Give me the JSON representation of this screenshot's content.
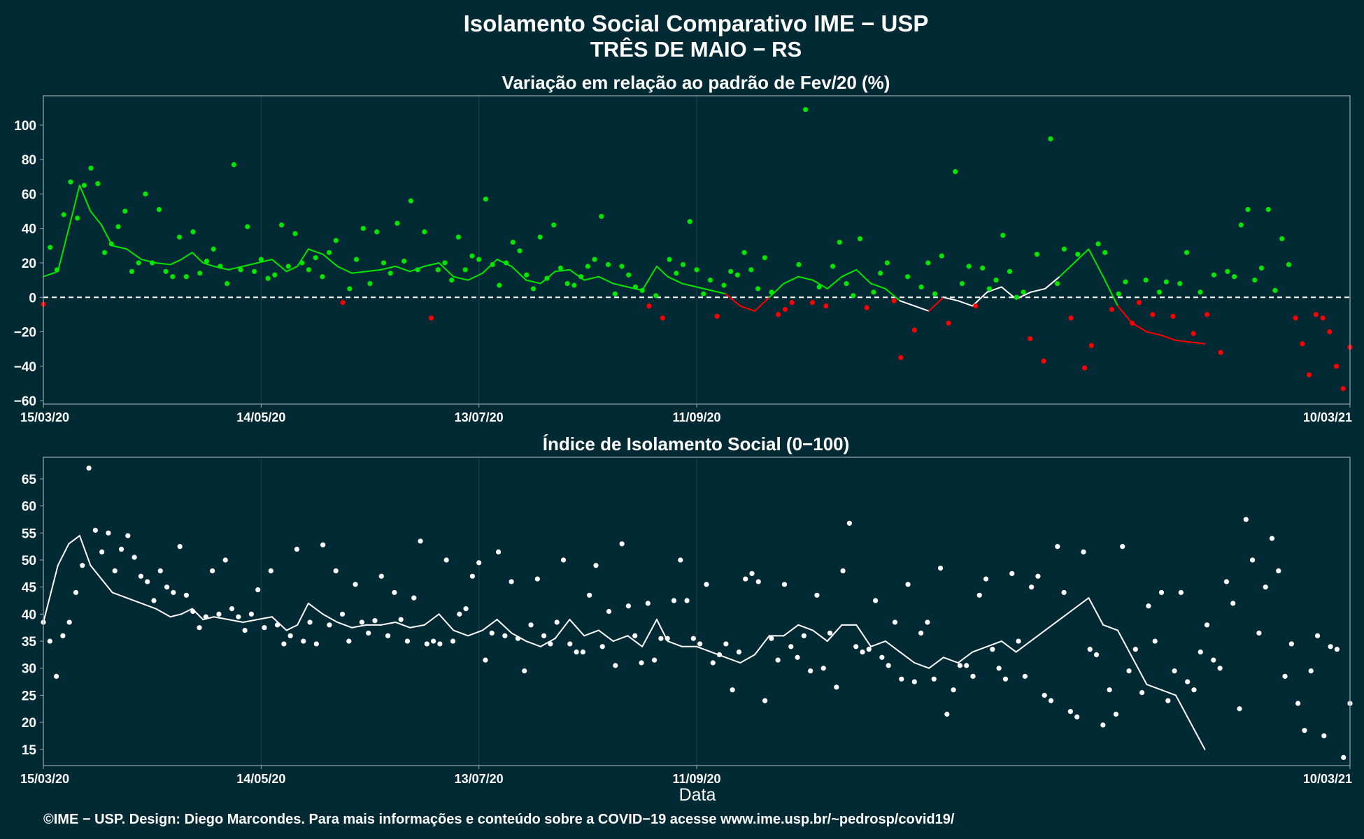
{
  "header": {
    "title": "Isolamento Social Comparativo IME − USP",
    "subtitle": "TRÊS DE MAIO − RS"
  },
  "footer": {
    "credit": "©IME − USP. Design: Diego Marcondes. Para mais informações e conteúdo sobre a COVID−19 acesse www.ime.usp.br/~pedrosp/covid19/"
  },
  "colors": {
    "background": "#022a35",
    "positive": "#00e600",
    "negative": "#ff0000",
    "index": "#ffffff",
    "panel_border": "#9aa8ad",
    "grid": "#1d4350"
  },
  "chart_data": [
    {
      "type": "scatter",
      "title": "Variação em relação ao padrão de Fev/20 (%)",
      "xlabel": "",
      "ylabel": "",
      "x_range": [
        "2020-03-15",
        "2021-03-10"
      ],
      "x_ticks": [
        "15/03/20",
        "14/05/20",
        "13/07/20",
        "11/09/20",
        "10/03/21"
      ],
      "ylim": [
        -62,
        117
      ],
      "y_ticks": [
        -60,
        -40,
        -20,
        0,
        20,
        40,
        60,
        80,
        100
      ],
      "grid": true,
      "reference_line": 0,
      "x": [
        "2020-03-15",
        "2020-03-19",
        "2020-03-22",
        "2020-03-25",
        "2020-03-28",
        "2020-03-31",
        "2020-04-03",
        "2020-04-07",
        "2020-04-11",
        "2020-04-15",
        "2020-04-19",
        "2020-04-22",
        "2020-04-25",
        "2020-04-28",
        "2020-05-01",
        "2020-05-05",
        "2020-05-09",
        "2020-05-13",
        "2020-05-17",
        "2020-05-21",
        "2020-05-24",
        "2020-05-27",
        "2020-05-31",
        "2020-06-04",
        "2020-06-08",
        "2020-06-12",
        "2020-06-16",
        "2020-06-20",
        "2020-06-24",
        "2020-06-28",
        "2020-07-02",
        "2020-07-06",
        "2020-07-10",
        "2020-07-14",
        "2020-07-18",
        "2020-07-22",
        "2020-07-26",
        "2020-07-30",
        "2020-08-03",
        "2020-08-07",
        "2020-08-11",
        "2020-08-15",
        "2020-08-19",
        "2020-08-23",
        "2020-08-27",
        "2020-08-31",
        "2020-09-03",
        "2020-09-07",
        "2020-09-11",
        "2020-09-15",
        "2020-09-19",
        "2020-09-23",
        "2020-09-27",
        "2020-10-01",
        "2020-10-05",
        "2020-10-09",
        "2020-10-13",
        "2020-10-17",
        "2020-10-21",
        "2020-10-25",
        "2020-10-29",
        "2020-11-02",
        "2020-11-06",
        "2020-11-10",
        "2020-11-14",
        "2020-11-18",
        "2020-11-22",
        "2020-11-26",
        "2020-11-30",
        "2020-12-04",
        "2020-12-08",
        "2020-12-12",
        "2020-12-16",
        "2020-12-20",
        "2020-12-24",
        "2020-12-28",
        "2021-01-01",
        "2021-01-05",
        "2021-01-09",
        "2021-01-13",
        "2021-01-17",
        "2021-01-21",
        "2021-01-25",
        "2021-01-29",
        "2021-02-02",
        "2021-02-06",
        "2021-02-10",
        "2021-02-14",
        "2021-02-18",
        "2021-02-22",
        "2021-02-26",
        "2021-03-02",
        "2021-03-06",
        "2021-03-10"
      ],
      "series": [
        {
          "values": [
            12,
            15,
            40,
            65,
            50,
            42,
            30,
            28,
            22,
            20,
            19,
            22,
            26,
            20,
            18,
            16,
            18,
            20,
            22,
            15,
            18,
            28,
            25,
            18,
            14,
            15,
            16,
            18,
            15,
            18,
            20,
            12,
            10,
            14,
            22,
            18,
            10,
            8,
            15,
            16,
            10,
            12,
            8,
            6,
            4,
            18,
            12,
            8,
            6,
            4,
            2,
            -5,
            -8,
            0,
            8,
            12,
            10,
            5,
            12,
            16,
            8,
            5,
            -2,
            -5,
            -8,
            0,
            -2,
            -5,
            3,
            6,
            -1,
            3,
            5,
            12,
            20,
            28,
            12,
            -5,
            -15,
            -20,
            -22,
            -25,
            -26,
            -27
          ]
        }
      ],
      "points": [
        -4,
        29,
        16,
        48,
        67,
        46,
        65,
        75,
        66,
        26,
        31,
        41,
        50,
        15,
        20,
        60,
        20,
        51,
        15,
        12,
        35,
        12,
        38,
        14,
        21,
        28,
        18,
        8,
        77,
        16,
        41,
        15,
        22,
        11,
        13,
        42,
        18,
        37,
        20,
        16,
        23,
        12,
        26,
        33,
        -3,
        5,
        22,
        40,
        8,
        38,
        20,
        14,
        43,
        21,
        56,
        16,
        38,
        -12,
        16,
        20,
        10,
        35,
        16,
        24,
        22,
        57,
        19,
        7,
        20,
        32,
        27,
        13,
        5,
        35,
        11,
        42,
        17,
        8,
        7,
        12,
        18,
        22,
        47,
        19,
        2,
        18,
        13,
        6,
        4,
        -5,
        1,
        -12,
        22,
        14,
        19,
        44,
        16,
        2,
        10,
        -11,
        7,
        15,
        13,
        26,
        16,
        5,
        23,
        3,
        -10,
        -7,
        -3,
        19,
        109,
        -3,
        6,
        -5,
        18,
        32,
        8,
        1,
        34,
        -6,
        3,
        14,
        20,
        -2,
        -35,
        12,
        -19,
        6,
        20,
        2,
        24,
        -15,
        73,
        8,
        18,
        -5,
        17,
        5,
        10,
        36,
        15,
        0,
        3,
        -24,
        25,
        -37,
        92,
        8,
        28,
        -12,
        25,
        -41,
        -28,
        31,
        26,
        -7,
        2,
        9,
        -15,
        -3,
        10,
        -10,
        3,
        9,
        -11,
        8,
        26,
        -21,
        3,
        -10,
        13,
        -32,
        15,
        12,
        42,
        51,
        10,
        17,
        51,
        4,
        34,
        19,
        -12,
        -27,
        -45,
        -10,
        -12,
        -20,
        -40,
        -53,
        -29
      ]
    },
    {
      "type": "scatter",
      "title": "Índice de Isolamento Social (0−100)",
      "xlabel": "Data",
      "ylabel": "",
      "x_range": [
        "2020-03-15",
        "2021-03-10"
      ],
      "x_ticks": [
        "15/03/20",
        "14/05/20",
        "13/07/20",
        "11/09/20",
        "10/03/21"
      ],
      "ylim": [
        12,
        69
      ],
      "y_ticks": [
        15,
        20,
        25,
        30,
        35,
        40,
        45,
        50,
        55,
        60,
        65
      ],
      "grid": true,
      "x": [
        "2020-03-15",
        "2020-03-19",
        "2020-03-22",
        "2020-03-25",
        "2020-03-28",
        "2020-03-31",
        "2020-04-03",
        "2020-04-07",
        "2020-04-11",
        "2020-04-15",
        "2020-04-19",
        "2020-04-22",
        "2020-04-25",
        "2020-04-28",
        "2020-05-01",
        "2020-05-05",
        "2020-05-09",
        "2020-05-13",
        "2020-05-17",
        "2020-05-21",
        "2020-05-24",
        "2020-05-27",
        "2020-05-31",
        "2020-06-04",
        "2020-06-08",
        "2020-06-12",
        "2020-06-16",
        "2020-06-20",
        "2020-06-24",
        "2020-06-28",
        "2020-07-02",
        "2020-07-06",
        "2020-07-10",
        "2020-07-14",
        "2020-07-18",
        "2020-07-22",
        "2020-07-26",
        "2020-07-30",
        "2020-08-03",
        "2020-08-07",
        "2020-08-11",
        "2020-08-15",
        "2020-08-19",
        "2020-08-23",
        "2020-08-27",
        "2020-08-31",
        "2020-09-03",
        "2020-09-07",
        "2020-09-11",
        "2020-09-15",
        "2020-09-19",
        "2020-09-23",
        "2020-09-27",
        "2020-10-01",
        "2020-10-05",
        "2020-10-09",
        "2020-10-13",
        "2020-10-17",
        "2020-10-21",
        "2020-10-25",
        "2020-10-29",
        "2020-11-02",
        "2020-11-06",
        "2020-11-10",
        "2020-11-14",
        "2020-11-18",
        "2020-11-22",
        "2020-11-26",
        "2020-11-30",
        "2020-12-04",
        "2020-12-08",
        "2020-12-12",
        "2020-12-16",
        "2020-12-20",
        "2020-12-24",
        "2020-12-28",
        "2021-01-01",
        "2021-01-05",
        "2021-01-09",
        "2021-01-13",
        "2021-01-17",
        "2021-01-21",
        "2021-01-25",
        "2021-01-29",
        "2021-02-02",
        "2021-02-06",
        "2021-02-10",
        "2021-02-14",
        "2021-02-18",
        "2021-02-22",
        "2021-02-26",
        "2021-03-02",
        "2021-03-06",
        "2021-03-10"
      ],
      "series": [
        {
          "values": [
            38.5,
            49,
            53,
            54.5,
            49,
            46.5,
            44,
            43,
            42,
            41,
            39.5,
            40,
            41,
            39,
            39.5,
            39,
            38.5,
            39,
            39.5,
            37,
            38,
            42,
            40,
            38.5,
            37.5,
            38,
            38,
            38.5,
            37.5,
            38,
            40,
            37,
            36,
            37,
            39,
            36.5,
            35,
            34,
            35.5,
            39,
            36,
            37,
            35,
            36,
            34,
            39,
            35,
            34,
            34,
            33,
            32,
            31,
            32.5,
            36,
            36,
            38,
            37,
            35,
            38,
            38,
            34,
            35,
            33,
            31,
            30,
            32,
            31,
            33,
            34,
            35,
            33,
            35,
            37,
            39,
            41,
            43,
            38,
            37,
            32,
            27,
            26,
            25,
            20,
            15
          ]
        }
      ],
      "points": [
        38.5,
        35,
        28.5,
        36,
        38.5,
        44,
        49,
        67,
        55.5,
        51.5,
        55,
        48,
        52,
        54.5,
        50.5,
        47,
        46,
        42.5,
        48,
        45,
        44,
        52.5,
        43.5,
        40.5,
        37.5,
        39.5,
        48,
        40,
        50,
        41,
        39.5,
        37,
        40,
        44.5,
        37.5,
        48,
        38,
        34.5,
        36,
        52,
        35,
        38.5,
        34.5,
        52.8,
        38,
        48,
        40,
        35,
        45.5,
        38.5,
        36.5,
        38.8,
        47,
        36,
        44,
        39,
        35,
        43,
        53.5,
        34.5,
        35,
        34.5,
        50,
        35,
        40,
        41,
        47,
        49.5,
        31.5,
        36.5,
        51.5,
        36,
        46,
        35.5,
        29.5,
        38,
        46.5,
        36,
        34.5,
        38.5,
        50,
        34.5,
        33,
        33,
        43.5,
        49,
        34,
        40.5,
        30.5,
        53,
        41.5,
        36,
        31,
        42,
        31.5,
        35.5,
        35.5,
        42.5,
        50,
        42.5,
        35.5,
        34.5,
        45.5,
        31,
        32.5,
        34.5,
        26,
        33,
        46.5,
        47.5,
        46,
        24,
        35.5,
        31.5,
        45.5,
        34,
        32,
        36,
        29.5,
        43.5,
        30,
        36.5,
        26.5,
        48,
        56.8,
        34,
        33,
        33.5,
        42.5,
        32,
        30.5,
        38.5,
        28,
        45.5,
        27.5,
        36.5,
        38.5,
        28,
        48.5,
        21.5,
        26,
        30.5,
        30.5,
        28.5,
        43.5,
        46.5,
        33.5,
        30,
        28,
        47.5,
        35,
        28.5,
        45,
        47,
        25,
        24,
        52.5,
        44,
        22,
        21,
        51.5,
        33.5,
        32.5,
        19.5,
        26,
        21.5,
        52.5,
        29.5,
        33.5,
        25.5,
        41.5,
        35,
        44,
        24,
        29.5,
        44,
        27.5,
        26,
        33,
        38,
        31.5,
        30,
        46,
        42,
        22.5,
        57.5,
        50,
        36.5,
        45,
        54,
        48,
        28.5,
        34.5,
        23.5,
        18.5,
        29.5,
        36,
        17.5,
        34,
        33.5,
        13.5,
        23.5
      ]
    }
  ]
}
